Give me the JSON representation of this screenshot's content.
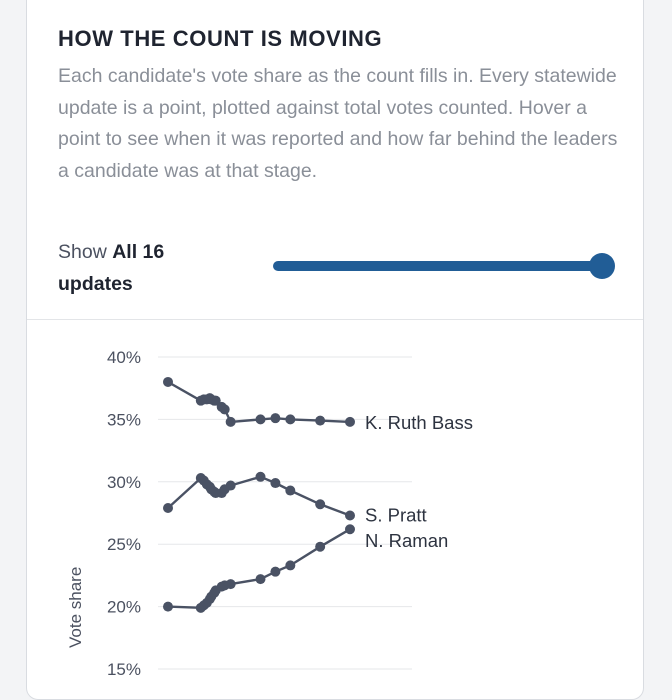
{
  "title": "HOW THE COUNT IS MOVING",
  "description": "Each candidate's vote share as the count fills in. Every statewide update is a point, plotted against total votes counted. Hover a point to see when it was reported and how far behind the leaders a candidate was at that stage.",
  "control": {
    "label": "Show",
    "value": "All 16 updates",
    "slider_fraction": 1.0
  },
  "colors": {
    "series": "#4a5264",
    "slider": "#215d96",
    "grid": "#e6e7ea"
  },
  "chart_data": {
    "type": "line",
    "title": "",
    "xlabel": "",
    "ylabel": "Vote share",
    "ylim": [
      15,
      40
    ],
    "y_ticks": [
      "40%",
      "35%",
      "30%",
      "25%",
      "20%",
      "15%"
    ],
    "y_tick_values": [
      40,
      35,
      30,
      25,
      20,
      15
    ],
    "grid": true,
    "x": [
      0,
      22,
      24,
      26,
      28,
      29,
      31,
      32,
      36,
      38,
      42,
      62,
      72,
      82,
      102,
      122
    ],
    "xlim": [
      0,
      122
    ],
    "series": [
      {
        "name": "K. Ruth Bass",
        "values": [
          38.0,
          36.5,
          36.6,
          36.6,
          36.7,
          36.6,
          36.5,
          36.5,
          36.0,
          35.8,
          34.8,
          35.0,
          35.1,
          35.0,
          34.9,
          34.8
        ]
      },
      {
        "name": "S. Pratt",
        "values": [
          27.9,
          30.3,
          30.1,
          29.8,
          29.6,
          29.4,
          29.2,
          29.1,
          29.1,
          29.4,
          29.7,
          30.4,
          29.9,
          29.3,
          28.2,
          27.3
        ]
      },
      {
        "name": "N. Raman",
        "values": [
          20.0,
          19.9,
          20.1,
          20.3,
          20.6,
          20.8,
          21.1,
          21.3,
          21.6,
          21.7,
          21.8,
          22.2,
          22.8,
          23.3,
          24.8,
          26.2
        ]
      }
    ]
  }
}
